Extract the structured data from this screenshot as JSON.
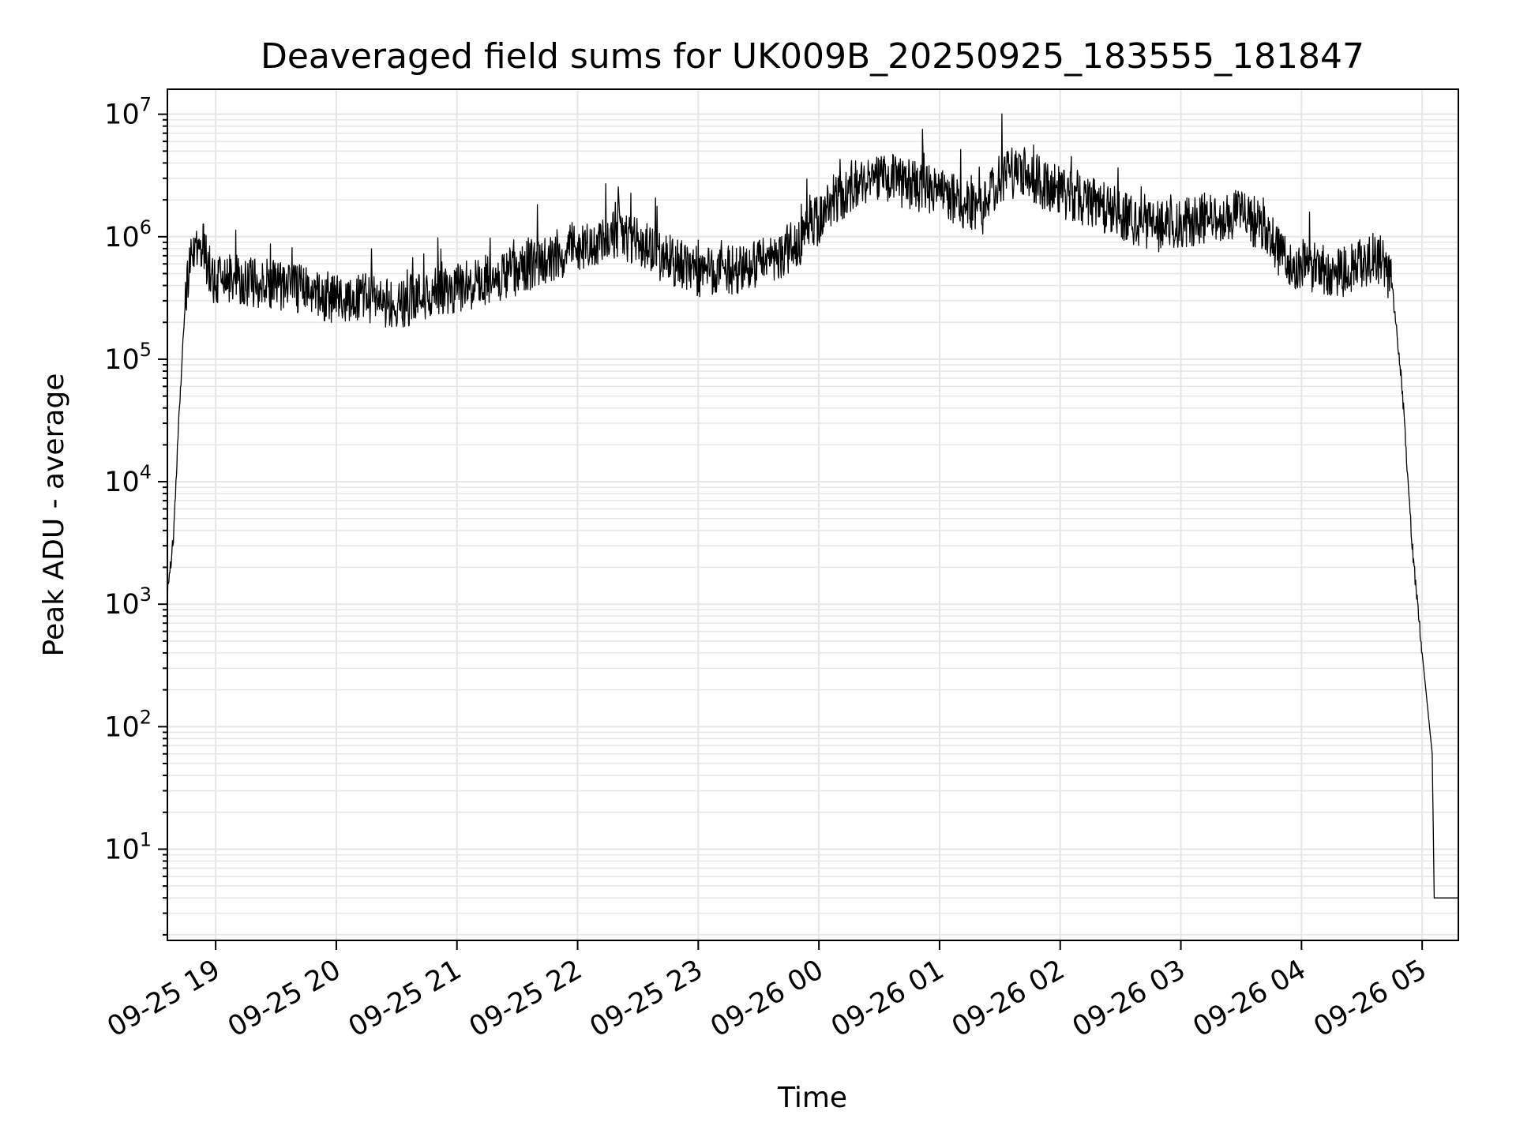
{
  "chart_data": {
    "type": "line",
    "title": "Deaveraged field sums for UK009B_20250925_183555_181847",
    "xlabel": "Time",
    "ylabel": "Peak ADU - average",
    "y_scale": "log",
    "ylim": [
      1.8,
      16000000
    ],
    "xlim": [
      "2025-09-25 18:36",
      "2025-09-26 05:18"
    ],
    "grid": "major and minor, light gray",
    "x_ticks": [
      {
        "value": "2025-09-25 19:00",
        "label": "09-25 19"
      },
      {
        "value": "2025-09-25 20:00",
        "label": "09-25 20"
      },
      {
        "value": "2025-09-25 21:00",
        "label": "09-25 21"
      },
      {
        "value": "2025-09-25 22:00",
        "label": "09-25 22"
      },
      {
        "value": "2025-09-25 23:00",
        "label": "09-25 23"
      },
      {
        "value": "2025-09-26 00:00",
        "label": "09-26 00"
      },
      {
        "value": "2025-09-26 01:00",
        "label": "09-26 01"
      },
      {
        "value": "2025-09-26 02:00",
        "label": "09-26 02"
      },
      {
        "value": "2025-09-26 03:00",
        "label": "09-26 03"
      },
      {
        "value": "2025-09-26 04:00",
        "label": "09-26 04"
      },
      {
        "value": "2025-09-26 05:00",
        "label": "09-26 05"
      }
    ],
    "y_ticks": [
      {
        "value": 10,
        "base": "10",
        "exp": "1"
      },
      {
        "value": 100,
        "base": "10",
        "exp": "2"
      },
      {
        "value": 1000,
        "base": "10",
        "exp": "3"
      },
      {
        "value": 10000,
        "base": "10",
        "exp": "4"
      },
      {
        "value": 100000,
        "base": "10",
        "exp": "5"
      },
      {
        "value": 1000000,
        "base": "10",
        "exp": "6"
      },
      {
        "value": 10000000,
        "base": "10",
        "exp": "7"
      }
    ],
    "series": [
      {
        "color": "#000000",
        "points": [
          [
            "2025-09-25 18:36",
            1200
          ],
          [
            "2025-09-25 18:39",
            3500
          ],
          [
            "2025-09-25 18:42",
            40000
          ],
          [
            "2025-09-25 18:45",
            300000
          ],
          [
            "2025-09-25 18:48",
            700000
          ],
          [
            "2025-09-25 18:51",
            850000
          ],
          [
            "2025-09-25 18:54",
            800000
          ],
          [
            "2025-09-25 18:57",
            550000
          ],
          [
            "2025-09-25 19:00",
            420000
          ],
          [
            "2025-09-25 19:10",
            450000
          ],
          [
            "2025-09-25 19:20",
            420000
          ],
          [
            "2025-09-25 19:30",
            400000
          ],
          [
            "2025-09-25 19:40",
            370000
          ],
          [
            "2025-09-25 19:50",
            340000
          ],
          [
            "2025-09-25 20:00",
            320000
          ],
          [
            "2025-09-25 20:10",
            330000
          ],
          [
            "2025-09-25 20:20",
            300000
          ],
          [
            "2025-09-25 20:30",
            280000
          ],
          [
            "2025-09-25 20:40",
            320000
          ],
          [
            "2025-09-25 20:50",
            350000
          ],
          [
            "2025-09-25 21:00",
            380000
          ],
          [
            "2025-09-25 21:10",
            420000
          ],
          [
            "2025-09-25 21:20",
            460000
          ],
          [
            "2025-09-25 21:30",
            530000
          ],
          [
            "2025-09-25 21:40",
            620000
          ],
          [
            "2025-09-25 21:50",
            720000
          ],
          [
            "2025-09-25 22:00",
            850000
          ],
          [
            "2025-09-25 22:10",
            950000
          ],
          [
            "2025-09-25 22:20",
            1050000
          ],
          [
            "2025-09-25 22:30",
            950000
          ],
          [
            "2025-09-25 22:40",
            700000
          ],
          [
            "2025-09-25 22:50",
            600000
          ],
          [
            "2025-09-25 23:00",
            520000
          ],
          [
            "2025-09-25 23:10",
            500000
          ],
          [
            "2025-09-25 23:20",
            550000
          ],
          [
            "2025-09-25 23:30",
            620000
          ],
          [
            "2025-09-25 23:40",
            700000
          ],
          [
            "2025-09-25 23:50",
            900000
          ],
          [
            "2025-09-26 00:00",
            1400000
          ],
          [
            "2025-09-26 00:10",
            2000000
          ],
          [
            "2025-09-26 00:20",
            2800000
          ],
          [
            "2025-09-26 00:30",
            3200000
          ],
          [
            "2025-09-26 00:40",
            2800000
          ],
          [
            "2025-09-26 00:50",
            2500000
          ],
          [
            "2025-09-26 01:00",
            2200000
          ],
          [
            "2025-09-26 01:10",
            2000000
          ],
          [
            "2025-09-26 01:20",
            1500000
          ],
          [
            "2025-09-26 01:30",
            3000000
          ],
          [
            "2025-09-26 01:40",
            3500000
          ],
          [
            "2025-09-26 01:50",
            2800000
          ],
          [
            "2025-09-26 02:00",
            2300000
          ],
          [
            "2025-09-26 02:10",
            2000000
          ],
          [
            "2025-09-26 02:20",
            1800000
          ],
          [
            "2025-09-26 02:30",
            1500000
          ],
          [
            "2025-09-26 02:40",
            1300000
          ],
          [
            "2025-09-26 02:50",
            1200000
          ],
          [
            "2025-09-26 03:00",
            1300000
          ],
          [
            "2025-09-26 03:10",
            1400000
          ],
          [
            "2025-09-26 03:20",
            1500000
          ],
          [
            "2025-09-26 03:30",
            1600000
          ],
          [
            "2025-09-26 03:40",
            1200000
          ],
          [
            "2025-09-26 03:50",
            700000
          ],
          [
            "2025-09-26 04:00",
            550000
          ],
          [
            "2025-09-26 04:10",
            550000
          ],
          [
            "2025-09-26 04:20",
            520000
          ],
          [
            "2025-09-26 04:30",
            600000
          ],
          [
            "2025-09-26 04:40",
            650000
          ],
          [
            "2025-09-26 04:45",
            400000
          ],
          [
            "2025-09-26 04:50",
            60000
          ],
          [
            "2025-09-26 04:55",
            3000
          ],
          [
            "2025-09-26 05:00",
            400
          ],
          [
            "2025-09-26 05:05",
            60
          ],
          [
            "2025-09-26 05:06",
            4
          ],
          [
            "2025-09-26 05:18",
            4
          ]
        ]
      }
    ]
  }
}
